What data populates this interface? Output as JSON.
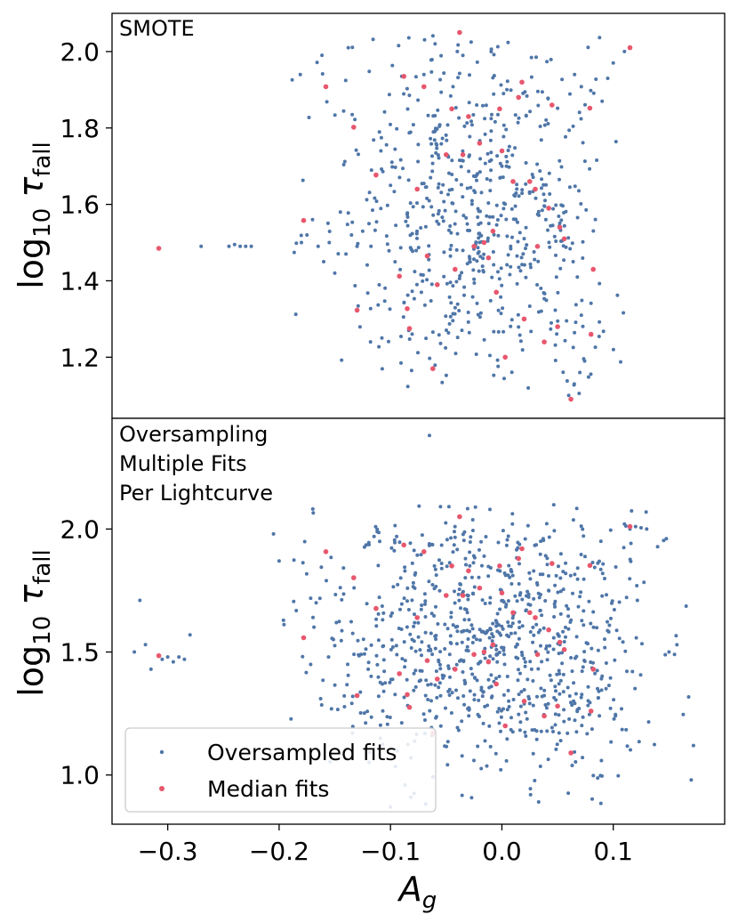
{
  "chart_data": [
    {
      "type": "scatter",
      "panel_label": "SMOTE",
      "title": "",
      "xlabel": "A_g",
      "ylabel": "log10 τ_fall",
      "xlim": [
        -0.35,
        0.2
      ],
      "ylim": [
        1.04,
        2.1
      ],
      "yticks": [
        1.2,
        1.4,
        1.6,
        1.8,
        2.0
      ],
      "ytick_labels": [
        "1.2",
        "1.4",
        "1.6",
        "1.8",
        "2.0"
      ],
      "series": [
        {
          "name": "Oversampled fits",
          "color": "#4f76a8",
          "generated": {
            "description": "synthetic SMOTE cloud around median fits",
            "seed": 7,
            "count": 700,
            "center": [
              -0.025,
              1.56
            ],
            "spread": [
              0.055,
              0.2
            ],
            "xclip": [
              -0.2,
              0.11
            ],
            "yclip": [
              1.1,
              2.05
            ]
          },
          "points": [
            [
              -0.27,
              1.49
            ],
            [
              -0.245,
              1.49
            ],
            [
              -0.24,
              1.495
            ],
            [
              -0.235,
              1.49
            ],
            [
              -0.23,
              1.49
            ],
            [
              -0.225,
              1.49
            ],
            [
              -0.18,
              1.5
            ],
            [
              -0.175,
              1.52
            ],
            [
              -0.17,
              1.56
            ],
            [
              -0.165,
              1.49
            ],
            [
              -0.16,
              1.45
            ],
            [
              -0.155,
              1.5
            ],
            [
              -0.15,
              1.42
            ],
            [
              -0.145,
              1.58
            ],
            [
              -0.14,
              1.47
            ],
            [
              -0.135,
              1.52
            ],
            [
              -0.13,
              1.49
            ],
            [
              -0.125,
              1.53
            ],
            [
              -0.07,
              1.94
            ],
            [
              -0.06,
              2.02
            ],
            [
              -0.04,
              2.0
            ],
            [
              -0.035,
              1.99
            ],
            [
              0.1,
              1.97
            ],
            [
              0.11,
              2.0
            ],
            [
              0.095,
              1.93
            ],
            [
              0.09,
              1.87
            ],
            [
              0.06,
              1.1
            ],
            [
              0.065,
              1.13
            ],
            [
              0.07,
              1.16
            ]
          ]
        },
        {
          "name": "Median fits",
          "color": "#e8576d",
          "points": [
            [
              -0.308,
              1.485
            ],
            [
              -0.178,
              1.558
            ],
            [
              -0.158,
              1.908
            ],
            [
              -0.133,
              1.802
            ],
            [
              -0.13,
              1.323
            ],
            [
              -0.113,
              1.677
            ],
            [
              -0.092,
              1.412
            ],
            [
              -0.088,
              1.935
            ],
            [
              -0.085,
              1.327
            ],
            [
              -0.083,
              1.275
            ],
            [
              -0.076,
              1.64
            ],
            [
              -0.07,
              1.908
            ],
            [
              -0.067,
              1.465
            ],
            [
              -0.062,
              1.17
            ],
            [
              -0.058,
              1.39
            ],
            [
              -0.05,
              1.73
            ],
            [
              -0.045,
              1.85
            ],
            [
              -0.042,
              1.43
            ],
            [
              -0.038,
              2.05
            ],
            [
              -0.035,
              1.73
            ],
            [
              -0.03,
              1.83
            ],
            [
              -0.025,
              1.49
            ],
            [
              -0.02,
              1.76
            ],
            [
              -0.016,
              1.5
            ],
            [
              -0.012,
              1.46
            ],
            [
              -0.008,
              1.53
            ],
            [
              -0.005,
              1.37
            ],
            [
              -0.002,
              1.85
            ],
            [
              0.0,
              1.74
            ],
            [
              0.003,
              1.2
            ],
            [
              0.01,
              1.66
            ],
            [
              0.015,
              1.88
            ],
            [
              0.018,
              1.92
            ],
            [
              0.02,
              1.3
            ],
            [
              0.025,
              1.66
            ],
            [
              0.03,
              1.64
            ],
            [
              0.032,
              1.49
            ],
            [
              0.038,
              1.24
            ],
            [
              0.042,
              1.59
            ],
            [
              0.045,
              1.86
            ],
            [
              0.05,
              1.28
            ],
            [
              0.052,
              1.54
            ],
            [
              0.056,
              1.51
            ],
            [
              0.062,
              1.09
            ],
            [
              0.079,
              1.852
            ],
            [
              0.08,
              1.26
            ],
            [
              0.082,
              1.43
            ],
            [
              0.115,
              2.01
            ]
          ]
        }
      ]
    },
    {
      "type": "scatter",
      "panel_label": "Oversampling\nMultiple Fits\nPer Lightcurve",
      "title": "",
      "xlabel": "A_g",
      "ylabel": "log10 τ_fall",
      "xlim": [
        -0.35,
        0.2
      ],
      "ylim": [
        0.8,
        2.45
      ],
      "xticks": [
        -0.3,
        -0.2,
        -0.1,
        0.0,
        0.1
      ],
      "xtick_labels": [
        "−0.3",
        "−0.2",
        "−0.1",
        "0.0",
        "0.1"
      ],
      "yticks": [
        1.0,
        1.5,
        2.0
      ],
      "ytick_labels": [
        "1.0",
        "1.5",
        "2.0"
      ],
      "series": [
        {
          "name": "Oversampled fits",
          "color": "#4f76a8",
          "generated": {
            "description": "synthetic oversampled cloud",
            "seed": 13,
            "count": 950,
            "center": [
              -0.01,
              1.55
            ],
            "spread": [
              0.075,
              0.28
            ],
            "xclip": [
              -0.2,
              0.175
            ],
            "yclip": [
              0.88,
              2.1
            ]
          },
          "points": [
            [
              -0.33,
              1.5
            ],
            [
              -0.325,
              1.71
            ],
            [
              -0.32,
              1.53
            ],
            [
              -0.315,
              1.43
            ],
            [
              -0.305,
              1.47
            ],
            [
              -0.3,
              1.48
            ],
            [
              -0.295,
              1.46
            ],
            [
              -0.29,
              1.48
            ],
            [
              -0.285,
              1.47
            ],
            [
              -0.28,
              1.57
            ],
            [
              -0.205,
              1.98
            ],
            [
              -0.2,
              1.87
            ],
            [
              -0.065,
              2.38
            ],
            [
              -0.1,
              0.87
            ],
            [
              0.17,
              0.98
            ],
            [
              0.172,
              1.12
            ],
            [
              0.12,
              2.01
            ],
            [
              0.125,
              2.005
            ],
            [
              0.13,
              2.0
            ],
            [
              0.11,
              2.02
            ],
            [
              0.115,
              2.0
            ],
            [
              0.15,
              1.5
            ],
            [
              0.155,
              1.49
            ]
          ]
        },
        {
          "name": "Median fits",
          "color": "#e8576d",
          "points": [
            [
              -0.308,
              1.485
            ],
            [
              -0.178,
              1.558
            ],
            [
              -0.158,
              1.908
            ],
            [
              -0.133,
              1.802
            ],
            [
              -0.13,
              1.323
            ],
            [
              -0.113,
              1.677
            ],
            [
              -0.092,
              1.412
            ],
            [
              -0.088,
              1.935
            ],
            [
              -0.085,
              1.327
            ],
            [
              -0.083,
              1.275
            ],
            [
              -0.076,
              1.64
            ],
            [
              -0.07,
              1.908
            ],
            [
              -0.067,
              1.465
            ],
            [
              -0.062,
              1.17
            ],
            [
              -0.058,
              1.39
            ],
            [
              -0.05,
              1.73
            ],
            [
              -0.045,
              1.85
            ],
            [
              -0.042,
              1.43
            ],
            [
              -0.038,
              2.05
            ],
            [
              -0.035,
              1.73
            ],
            [
              -0.03,
              1.83
            ],
            [
              -0.025,
              1.49
            ],
            [
              -0.02,
              1.76
            ],
            [
              -0.016,
              1.5
            ],
            [
              -0.012,
              1.46
            ],
            [
              -0.008,
              1.53
            ],
            [
              -0.005,
              1.37
            ],
            [
              -0.002,
              1.85
            ],
            [
              0.0,
              1.74
            ],
            [
              0.003,
              1.2
            ],
            [
              0.01,
              1.66
            ],
            [
              0.015,
              1.88
            ],
            [
              0.018,
              1.92
            ],
            [
              0.02,
              1.3
            ],
            [
              0.025,
              1.66
            ],
            [
              0.03,
              1.64
            ],
            [
              0.032,
              1.49
            ],
            [
              0.038,
              1.24
            ],
            [
              0.042,
              1.59
            ],
            [
              0.045,
              1.86
            ],
            [
              0.05,
              1.28
            ],
            [
              0.052,
              1.54
            ],
            [
              0.056,
              1.51
            ],
            [
              0.062,
              1.09
            ],
            [
              0.079,
              1.852
            ],
            [
              0.08,
              1.26
            ],
            [
              0.082,
              1.43
            ],
            [
              0.115,
              2.01
            ]
          ]
        }
      ]
    }
  ],
  "legend": {
    "location": "lower-left",
    "entries": [
      {
        "label": "Oversampled fits",
        "color": "#4f76a8"
      },
      {
        "label": "Median fits",
        "color": "#e8576d"
      }
    ]
  }
}
